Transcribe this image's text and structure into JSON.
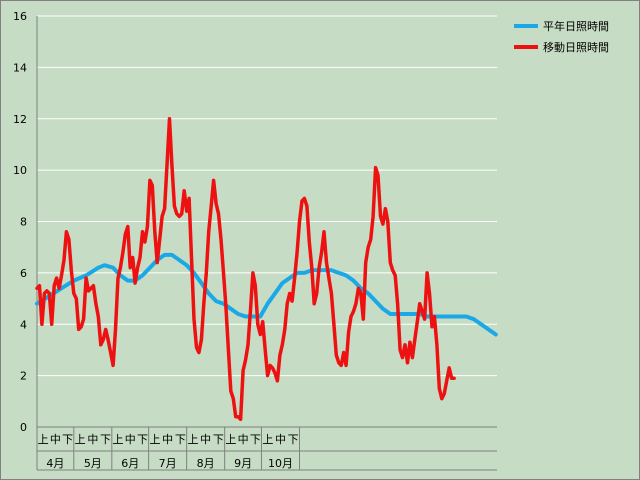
{
  "colors": {
    "background": "#c6dcc4",
    "plot_background": "#c6dcc4",
    "grid": "#ffffff",
    "axis": "#808080",
    "normal_series": "#1aa9e6",
    "moving_series": "#ee1111"
  },
  "chart_data": {
    "type": "line",
    "title": "",
    "xlabel": "",
    "ylabel": "",
    "ylim": [
      0,
      16
    ],
    "yticks": [
      0,
      2,
      4,
      6,
      8,
      10,
      12,
      14,
      16
    ],
    "grid": true,
    "legend_position": "top-right",
    "months": [
      "4月",
      "5月",
      "6月",
      "7月",
      "8月",
      "9月",
      "10月"
    ],
    "periods": [
      "上",
      "中",
      "下"
    ],
    "x_unit": "day index from April 1",
    "series": [
      {
        "name": "平年日照時間",
        "color": "#1aa9e6",
        "points": [
          [
            0,
            4.8
          ],
          [
            10,
            5.1
          ],
          [
            20,
            5.4
          ],
          [
            30,
            5.7
          ],
          [
            40,
            5.9
          ],
          [
            50,
            6.2
          ],
          [
            55,
            6.3
          ],
          [
            62,
            6.2
          ],
          [
            68,
            5.9
          ],
          [
            74,
            5.7
          ],
          [
            80,
            5.7
          ],
          [
            86,
            5.9
          ],
          [
            92,
            6.2
          ],
          [
            98,
            6.5
          ],
          [
            104,
            6.7
          ],
          [
            110,
            6.7
          ],
          [
            116,
            6.5
          ],
          [
            122,
            6.3
          ],
          [
            128,
            6.0
          ],
          [
            134,
            5.6
          ],
          [
            140,
            5.2
          ],
          [
            146,
            4.9
          ],
          [
            152,
            4.8
          ],
          [
            158,
            4.6
          ],
          [
            164,
            4.4
          ],
          [
            170,
            4.3
          ],
          [
            176,
            4.3
          ],
          [
            182,
            4.3
          ],
          [
            188,
            4.8
          ],
          [
            194,
            5.2
          ],
          [
            200,
            5.6
          ],
          [
            206,
            5.8
          ],
          [
            212,
            6.0
          ],
          [
            218,
            6.0
          ],
          [
            224,
            6.1
          ],
          [
            232,
            6.1
          ],
          [
            240,
            6.1
          ],
          [
            246,
            6.0
          ],
          [
            252,
            5.9
          ],
          [
            258,
            5.7
          ],
          [
            264,
            5.4
          ],
          [
            270,
            5.2
          ],
          [
            276,
            4.9
          ],
          [
            282,
            4.6
          ],
          [
            288,
            4.4
          ],
          [
            294,
            4.4
          ],
          [
            300,
            4.4
          ],
          [
            306,
            4.4
          ],
          [
            312,
            4.4
          ],
          [
            318,
            4.3
          ],
          [
            326,
            4.3
          ],
          [
            334,
            4.3
          ],
          [
            342,
            4.3
          ],
          [
            350,
            4.3
          ],
          [
            356,
            4.2
          ],
          [
            362,
            4.0
          ],
          [
            368,
            3.8
          ],
          [
            374,
            3.6
          ]
        ]
      },
      {
        "name": "移動日照時間",
        "color": "#ee1111",
        "points": [
          [
            0,
            5.4
          ],
          [
            2,
            5.5
          ],
          [
            4,
            4.0
          ],
          [
            6,
            5.2
          ],
          [
            8,
            5.3
          ],
          [
            10,
            5.2
          ],
          [
            12,
            4.0
          ],
          [
            14,
            5.5
          ],
          [
            16,
            5.8
          ],
          [
            18,
            5.4
          ],
          [
            20,
            5.9
          ],
          [
            22,
            6.5
          ],
          [
            24,
            7.6
          ],
          [
            26,
            7.3
          ],
          [
            28,
            6.1
          ],
          [
            30,
            5.2
          ],
          [
            32,
            5.0
          ],
          [
            34,
            3.8
          ],
          [
            36,
            3.9
          ],
          [
            38,
            4.2
          ],
          [
            40,
            5.8
          ],
          [
            42,
            5.3
          ],
          [
            44,
            5.4
          ],
          [
            46,
            5.5
          ],
          [
            48,
            4.8
          ],
          [
            50,
            4.3
          ],
          [
            52,
            3.2
          ],
          [
            54,
            3.4
          ],
          [
            56,
            3.8
          ],
          [
            58,
            3.4
          ],
          [
            60,
            2.9
          ],
          [
            62,
            2.4
          ],
          [
            64,
            3.8
          ],
          [
            66,
            5.8
          ],
          [
            68,
            6.2
          ],
          [
            70,
            6.8
          ],
          [
            72,
            7.5
          ],
          [
            74,
            7.8
          ],
          [
            76,
            6.2
          ],
          [
            78,
            6.6
          ],
          [
            80,
            5.6
          ],
          [
            82,
            6.2
          ],
          [
            84,
            6.6
          ],
          [
            86,
            7.6
          ],
          [
            88,
            7.2
          ],
          [
            90,
            7.8
          ],
          [
            92,
            9.6
          ],
          [
            94,
            9.4
          ],
          [
            96,
            7.6
          ],
          [
            98,
            6.4
          ],
          [
            100,
            7.3
          ],
          [
            102,
            8.2
          ],
          [
            104,
            8.5
          ],
          [
            106,
            10.2
          ],
          [
            108,
            12.0
          ],
          [
            110,
            10.2
          ],
          [
            112,
            8.6
          ],
          [
            114,
            8.3
          ],
          [
            116,
            8.2
          ],
          [
            118,
            8.3
          ],
          [
            120,
            9.2
          ],
          [
            122,
            8.4
          ],
          [
            124,
            8.9
          ],
          [
            126,
            6.5
          ],
          [
            128,
            4.2
          ],
          [
            130,
            3.1
          ],
          [
            132,
            2.9
          ],
          [
            134,
            3.4
          ],
          [
            136,
            4.8
          ],
          [
            138,
            6.0
          ],
          [
            140,
            7.6
          ],
          [
            142,
            8.6
          ],
          [
            144,
            9.6
          ],
          [
            146,
            8.7
          ],
          [
            148,
            8.3
          ],
          [
            150,
            7.3
          ],
          [
            152,
            6.0
          ],
          [
            154,
            4.7
          ],
          [
            156,
            3.0
          ],
          [
            158,
            1.4
          ],
          [
            160,
            1.1
          ],
          [
            162,
            0.4
          ],
          [
            164,
            0.4
          ],
          [
            166,
            0.3
          ],
          [
            168,
            2.2
          ],
          [
            170,
            2.6
          ],
          [
            172,
            3.2
          ],
          [
            174,
            4.5
          ],
          [
            176,
            6.0
          ],
          [
            178,
            5.5
          ],
          [
            180,
            4.0
          ],
          [
            182,
            3.6
          ],
          [
            184,
            4.1
          ],
          [
            186,
            3.0
          ],
          [
            188,
            2.0
          ],
          [
            190,
            2.4
          ],
          [
            192,
            2.3
          ],
          [
            194,
            2.1
          ],
          [
            196,
            1.8
          ],
          [
            198,
            2.8
          ],
          [
            200,
            3.2
          ],
          [
            202,
            3.8
          ],
          [
            204,
            4.8
          ],
          [
            206,
            5.2
          ],
          [
            208,
            4.9
          ],
          [
            210,
            5.8
          ],
          [
            212,
            6.8
          ],
          [
            214,
            8.0
          ],
          [
            216,
            8.8
          ],
          [
            218,
            8.9
          ],
          [
            220,
            8.6
          ],
          [
            222,
            7.2
          ],
          [
            224,
            6.2
          ],
          [
            226,
            4.8
          ],
          [
            228,
            5.2
          ],
          [
            230,
            6.2
          ],
          [
            232,
            6.8
          ],
          [
            234,
            7.6
          ],
          [
            236,
            6.4
          ],
          [
            238,
            5.8
          ],
          [
            240,
            5.2
          ],
          [
            242,
            4.0
          ],
          [
            244,
            2.8
          ],
          [
            246,
            2.5
          ],
          [
            248,
            2.4
          ],
          [
            250,
            2.9
          ],
          [
            252,
            2.4
          ],
          [
            254,
            3.7
          ],
          [
            256,
            4.3
          ],
          [
            258,
            4.5
          ],
          [
            260,
            4.8
          ],
          [
            262,
            5.4
          ],
          [
            264,
            5.2
          ],
          [
            266,
            4.2
          ],
          [
            268,
            6.4
          ],
          [
            270,
            7.0
          ],
          [
            272,
            7.3
          ],
          [
            274,
            8.2
          ],
          [
            276,
            10.1
          ],
          [
            278,
            9.8
          ],
          [
            280,
            8.2
          ],
          [
            282,
            7.9
          ],
          [
            284,
            8.5
          ],
          [
            286,
            8.0
          ],
          [
            288,
            6.4
          ],
          [
            290,
            6.1
          ],
          [
            292,
            5.9
          ],
          [
            294,
            4.8
          ],
          [
            296,
            3.0
          ],
          [
            298,
            2.7
          ],
          [
            300,
            3.2
          ],
          [
            302,
            2.5
          ],
          [
            304,
            3.3
          ],
          [
            306,
            2.7
          ],
          [
            308,
            3.4
          ],
          [
            310,
            4.1
          ],
          [
            312,
            4.8
          ],
          [
            314,
            4.5
          ],
          [
            316,
            4.2
          ],
          [
            318,
            6.0
          ],
          [
            320,
            5.2
          ],
          [
            322,
            3.9
          ],
          [
            324,
            4.3
          ],
          [
            326,
            3.2
          ],
          [
            328,
            1.5
          ],
          [
            330,
            1.1
          ],
          [
            332,
            1.3
          ],
          [
            334,
            1.8
          ],
          [
            336,
            2.3
          ],
          [
            338,
            1.9
          ],
          [
            340,
            1.9
          ]
        ]
      }
    ]
  }
}
